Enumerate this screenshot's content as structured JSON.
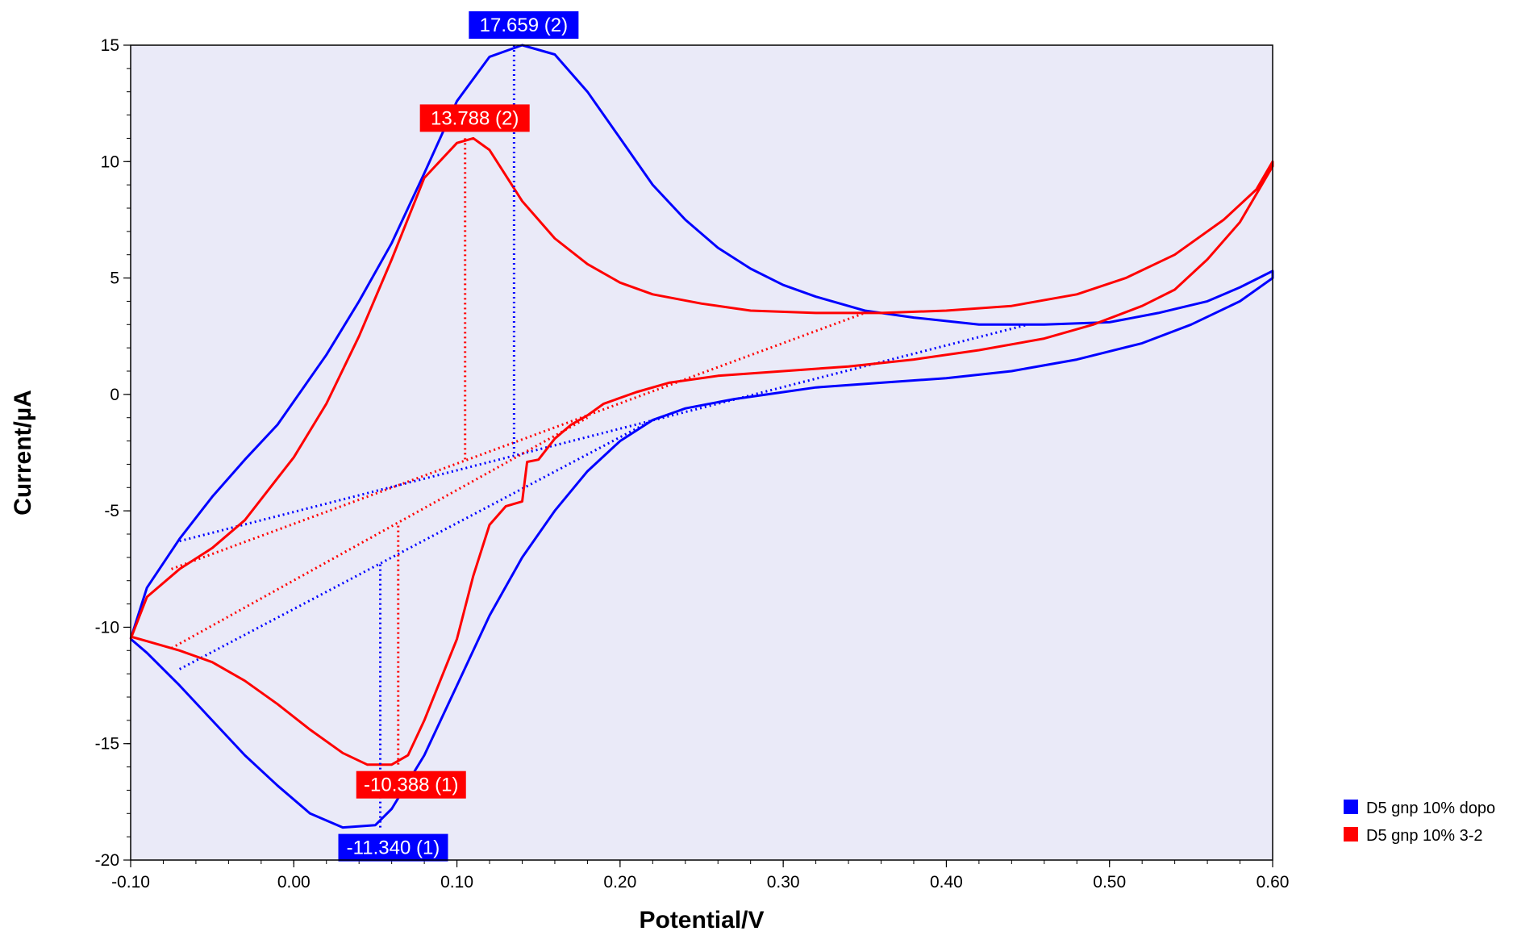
{
  "chart_data": {
    "type": "line",
    "xlabel": "Potential/V",
    "ylabel": "Current/µA",
    "xlim": [
      -0.1,
      0.6
    ],
    "ylim": [
      -20,
      15
    ],
    "x_ticks": [
      "-0.10",
      "0.00",
      "0.10",
      "0.20",
      "0.30",
      "0.40",
      "0.50",
      "0.60"
    ],
    "y_ticks": [
      "15",
      "10",
      "5",
      "0",
      "-5",
      "-10",
      "-15",
      "-20"
    ],
    "grid": false,
    "legend_position": "right",
    "plot_background": "#EAEAF8",
    "series": [
      {
        "name": "D5 gnp 10% dopo",
        "color": "#0000FF",
        "points": [
          [
            -0.1,
            -10.5
          ],
          [
            -0.09,
            -8.3
          ],
          [
            -0.07,
            -6.2
          ],
          [
            -0.05,
            -4.4
          ],
          [
            -0.03,
            -2.8
          ],
          [
            -0.01,
            -1.3
          ],
          [
            0.0,
            -0.3
          ],
          [
            0.02,
            1.7
          ],
          [
            0.04,
            4.0
          ],
          [
            0.06,
            6.5
          ],
          [
            0.08,
            9.5
          ],
          [
            0.1,
            12.6
          ],
          [
            0.12,
            14.5
          ],
          [
            0.14,
            15.0
          ],
          [
            0.16,
            14.6
          ],
          [
            0.18,
            13.0
          ],
          [
            0.2,
            11.0
          ],
          [
            0.22,
            9.0
          ],
          [
            0.24,
            7.5
          ],
          [
            0.26,
            6.3
          ],
          [
            0.28,
            5.4
          ],
          [
            0.3,
            4.7
          ],
          [
            0.32,
            4.2
          ],
          [
            0.35,
            3.6
          ],
          [
            0.38,
            3.3
          ],
          [
            0.42,
            3.0
          ],
          [
            0.46,
            3.0
          ],
          [
            0.5,
            3.1
          ],
          [
            0.53,
            3.5
          ],
          [
            0.56,
            4.0
          ],
          [
            0.58,
            4.6
          ],
          [
            0.6,
            5.3
          ],
          [
            0.6,
            5.0
          ],
          [
            0.58,
            4.0
          ],
          [
            0.55,
            3.0
          ],
          [
            0.52,
            2.2
          ],
          [
            0.48,
            1.5
          ],
          [
            0.44,
            1.0
          ],
          [
            0.4,
            0.7
          ],
          [
            0.36,
            0.5
          ],
          [
            0.32,
            0.3
          ],
          [
            0.3,
            0.1
          ],
          [
            0.27,
            -0.2
          ],
          [
            0.24,
            -0.6
          ],
          [
            0.22,
            -1.1
          ],
          [
            0.2,
            -2.0
          ],
          [
            0.18,
            -3.3
          ],
          [
            0.16,
            -5.0
          ],
          [
            0.14,
            -7.0
          ],
          [
            0.12,
            -9.5
          ],
          [
            0.1,
            -12.5
          ],
          [
            0.08,
            -15.5
          ],
          [
            0.06,
            -17.8
          ],
          [
            0.05,
            -18.5
          ],
          [
            0.03,
            -18.6
          ],
          [
            0.01,
            -18.0
          ],
          [
            -0.01,
            -16.8
          ],
          [
            -0.03,
            -15.5
          ],
          [
            -0.05,
            -14.0
          ],
          [
            -0.07,
            -12.5
          ],
          [
            -0.09,
            -11.1
          ],
          [
            -0.1,
            -10.5
          ]
        ],
        "peaks": [
          {
            "label": "17.659 (2)",
            "x": 0.135,
            "y": 15.0
          },
          {
            "label": "-11.340 (1)",
            "x": 0.053,
            "y": -18.6
          }
        ],
        "baselines": [
          [
            [
              -0.07,
              -6.3
            ],
            [
              0.45,
              3.0
            ]
          ],
          [
            [
              -0.07,
              -11.8
            ],
            [
              0.22,
              -1.1
            ]
          ]
        ]
      },
      {
        "name": "D5 gnp 10% 3-2",
        "color": "#FF0000",
        "points": [
          [
            -0.1,
            -10.5
          ],
          [
            -0.09,
            -8.7
          ],
          [
            -0.07,
            -7.5
          ],
          [
            -0.05,
            -6.6
          ],
          [
            -0.03,
            -5.4
          ],
          [
            -0.01,
            -3.6
          ],
          [
            0.0,
            -2.7
          ],
          [
            0.02,
            -0.4
          ],
          [
            0.04,
            2.5
          ],
          [
            0.06,
            5.8
          ],
          [
            0.08,
            9.3
          ],
          [
            0.1,
            10.8
          ],
          [
            0.11,
            11.0
          ],
          [
            0.12,
            10.5
          ],
          [
            0.14,
            8.3
          ],
          [
            0.16,
            6.7
          ],
          [
            0.18,
            5.6
          ],
          [
            0.2,
            4.8
          ],
          [
            0.22,
            4.3
          ],
          [
            0.25,
            3.9
          ],
          [
            0.28,
            3.6
          ],
          [
            0.32,
            3.5
          ],
          [
            0.36,
            3.5
          ],
          [
            0.4,
            3.6
          ],
          [
            0.44,
            3.8
          ],
          [
            0.48,
            4.3
          ],
          [
            0.51,
            5.0
          ],
          [
            0.54,
            6.0
          ],
          [
            0.57,
            7.5
          ],
          [
            0.59,
            8.8
          ],
          [
            0.6,
            10.0
          ],
          [
            0.6,
            9.8
          ],
          [
            0.58,
            7.4
          ],
          [
            0.56,
            5.8
          ],
          [
            0.54,
            4.5
          ],
          [
            0.52,
            3.8
          ],
          [
            0.49,
            3.0
          ],
          [
            0.46,
            2.4
          ],
          [
            0.42,
            1.9
          ],
          [
            0.38,
            1.5
          ],
          [
            0.34,
            1.2
          ],
          [
            0.3,
            1.0
          ],
          [
            0.26,
            0.8
          ],
          [
            0.23,
            0.5
          ],
          [
            0.21,
            0.1
          ],
          [
            0.19,
            -0.4
          ],
          [
            0.18,
            -0.9
          ],
          [
            0.17,
            -1.3
          ],
          [
            0.16,
            -1.9
          ],
          [
            0.15,
            -2.8
          ],
          [
            0.143,
            -2.9
          ],
          [
            0.14,
            -4.6
          ],
          [
            0.13,
            -4.8
          ],
          [
            0.12,
            -5.6
          ],
          [
            0.11,
            -7.8
          ],
          [
            0.1,
            -10.5
          ],
          [
            0.08,
            -14.0
          ],
          [
            0.07,
            -15.5
          ],
          [
            0.06,
            -15.9
          ],
          [
            0.045,
            -15.9
          ],
          [
            0.03,
            -15.4
          ],
          [
            0.01,
            -14.4
          ],
          [
            -0.01,
            -13.3
          ],
          [
            -0.03,
            -12.3
          ],
          [
            -0.05,
            -11.5
          ],
          [
            -0.07,
            -11.0
          ],
          [
            -0.09,
            -10.6
          ],
          [
            -0.1,
            -10.4
          ]
        ],
        "peaks": [
          {
            "label": "13.788 (2)",
            "x": 0.105,
            "y": 11.0
          },
          {
            "label": "-10.388 (1)",
            "x": 0.064,
            "y": -15.9
          }
        ],
        "baselines": [
          [
            [
              -0.075,
              -7.5
            ],
            [
              0.35,
              3.5
            ]
          ],
          [
            [
              -0.075,
              -10.9
            ],
            [
              0.18,
              -1.0
            ]
          ]
        ]
      }
    ]
  }
}
